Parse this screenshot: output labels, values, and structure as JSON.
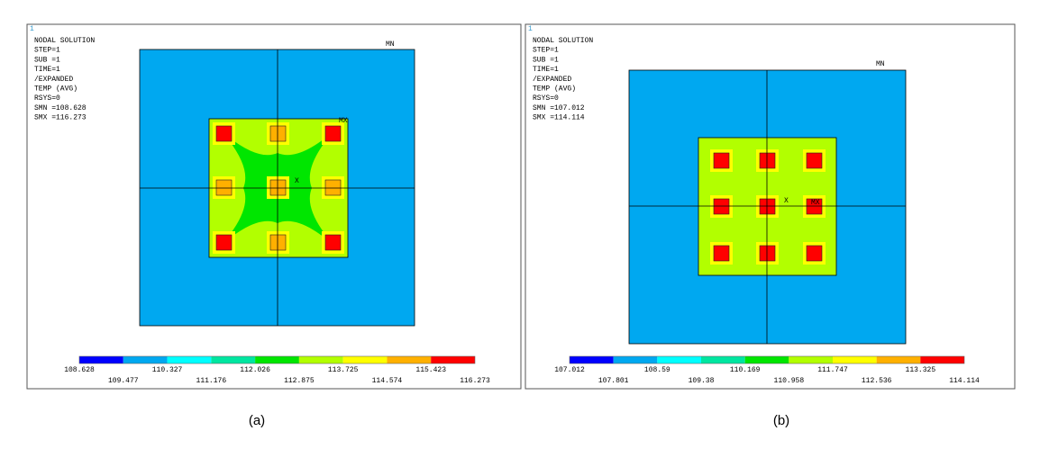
{
  "panels": [
    {
      "caption": "(a)",
      "corner": "1",
      "header": [
        "NODAL SOLUTION",
        "STEP=1",
        "SUB =1",
        "TIME=1",
        "/EXPANDED",
        "TEMP      (AVG)",
        "RSYS=0",
        "SMN =108.628",
        "SMX =116.273"
      ],
      "min_label": "MN",
      "max_label": "MX",
      "axis_label": "X",
      "legend_top": [
        "108.628",
        "110.327",
        "112.026",
        "113.725",
        "115.423"
      ],
      "legend_bottom": [
        "109.477",
        "111.176",
        "112.875",
        "114.574",
        "116.273"
      ]
    },
    {
      "caption": "(b)",
      "corner": "1",
      "header": [
        "NODAL SOLUTION",
        "STEP=1",
        "SUB =1",
        "TIME=1",
        "/EXPANDED",
        "TEMP      (AVG)",
        "RSYS=0",
        "SMN =107.012",
        "SMX =114.114"
      ],
      "min_label": "MN",
      "max_label": "MX",
      "axis_label": "X",
      "legend_top": [
        "107.012",
        "108.59",
        "110.169",
        "111.747",
        "113.325"
      ],
      "legend_bottom": [
        "107.801",
        "109.38",
        "110.958",
        "112.536",
        "114.114"
      ]
    }
  ]
}
